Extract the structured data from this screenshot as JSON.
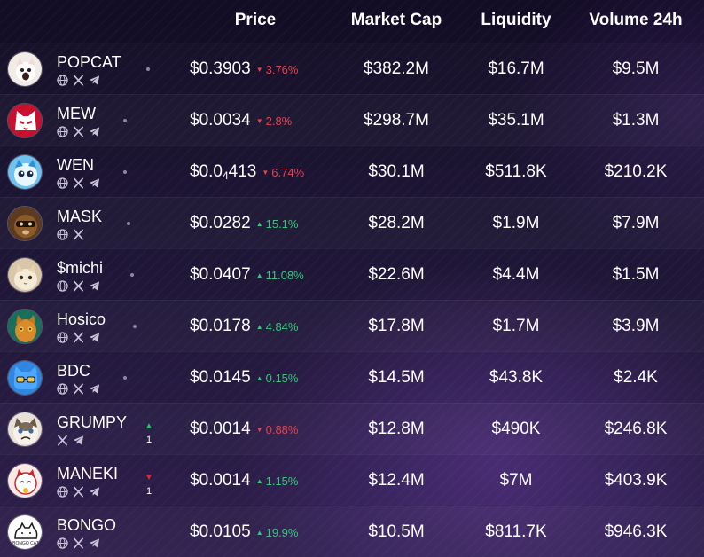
{
  "header": {
    "price": "Price",
    "market_cap": "Market Cap",
    "liquidity": "Liquidity",
    "volume_24h": "Volume 24h"
  },
  "rows": [
    {
      "name": "POPCAT",
      "price": "$0.3903",
      "change": "3.76%",
      "direction": "down",
      "market_cap": "$382.2M",
      "liquidity": "$16.7M",
      "volume": "$9.5M",
      "socials": [
        "web-icon",
        "x-icon",
        "telegram-icon"
      ],
      "rank_change": null
    },
    {
      "name": "MEW",
      "price": "$0.0034",
      "change": "2.8%",
      "direction": "down",
      "market_cap": "$298.7M",
      "liquidity": "$35.1M",
      "volume": "$1.3M",
      "socials": [
        "web-icon",
        "x-icon",
        "telegram-icon"
      ],
      "rank_change": null
    },
    {
      "name": "WEN",
      "price_main": "$0.0",
      "price_sub": "4",
      "price_tail": "413",
      "change": "6.74%",
      "direction": "down",
      "market_cap": "$30.1M",
      "liquidity": "$511.8K",
      "volume": "$210.2K",
      "socials": [
        "web-icon",
        "x-icon",
        "telegram-icon"
      ],
      "rank_change": null
    },
    {
      "name": "MASK",
      "price": "$0.0282",
      "change": "15.1%",
      "direction": "up",
      "market_cap": "$28.2M",
      "liquidity": "$1.9M",
      "volume": "$7.9M",
      "socials": [
        "web-icon",
        "x-icon"
      ],
      "rank_change": null
    },
    {
      "name": "$michi",
      "price": "$0.0407",
      "change": "11.08%",
      "direction": "up",
      "market_cap": "$22.6M",
      "liquidity": "$4.4M",
      "volume": "$1.5M",
      "socials": [
        "web-icon",
        "x-icon",
        "telegram-icon"
      ],
      "rank_change": null
    },
    {
      "name": "Hosico",
      "price": "$0.0178",
      "change": "4.84%",
      "direction": "up",
      "market_cap": "$17.8M",
      "liquidity": "$1.7M",
      "volume": "$3.9M",
      "socials": [
        "web-icon",
        "x-icon",
        "telegram-icon"
      ],
      "rank_change": null
    },
    {
      "name": "BDC",
      "price": "$0.0145",
      "change": "0.15%",
      "direction": "up",
      "market_cap": "$14.5M",
      "liquidity": "$43.8K",
      "volume": "$2.4K",
      "socials": [
        "web-icon",
        "x-icon",
        "telegram-icon"
      ],
      "rank_change": null
    },
    {
      "name": "GRUMPY",
      "price": "$0.0014",
      "change": "0.88%",
      "direction": "down",
      "market_cap": "$12.8M",
      "liquidity": "$490K",
      "volume": "$246.8K",
      "socials": [
        "x-icon",
        "telegram-icon"
      ],
      "rank_change": {
        "direction": "up",
        "value": "1"
      }
    },
    {
      "name": "MANEKI",
      "price": "$0.0014",
      "change": "1.15%",
      "direction": "up",
      "market_cap": "$12.4M",
      "liquidity": "$7M",
      "volume": "$403.9K",
      "socials": [
        "web-icon",
        "x-icon",
        "telegram-icon"
      ],
      "rank_change": {
        "direction": "down",
        "value": "1"
      }
    },
    {
      "name": "BONGO",
      "price": "$0.0105",
      "change": "19.9%",
      "direction": "up",
      "market_cap": "$10.5M",
      "liquidity": "$811.7K",
      "volume": "$946.3K",
      "socials": [
        "web-icon",
        "x-icon",
        "telegram-icon"
      ],
      "rank_change": null
    }
  ],
  "colors": {
    "up": "#37c77b",
    "down": "#e0434f",
    "rank_up": "#2cc26a",
    "rank_down": "#e0263d"
  }
}
